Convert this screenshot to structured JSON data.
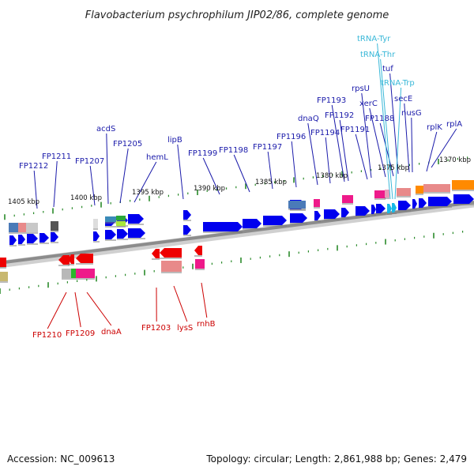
{
  "title": "Flavobacterium psychrophilum JIP02/86, complete genome",
  "footer": {
    "accession": "Accession: NC_009613",
    "summary": "Topology: circular; Length: 2,861,988 bp; Genes: 2,479"
  },
  "scale_labels": [
    "1405 kbp",
    "1400 kbp",
    "1395 kbp",
    "1390 kbp",
    "1385 kbp",
    "1380 kbp",
    "1375 kbp",
    "1370 kbp"
  ],
  "colors": {
    "forward_label": "#1a1aaa",
    "reverse_label": "#cc0000",
    "trna_label": "#3ab8d8",
    "forward_gene": "#0000ee",
    "reverse_gene": "#ee0000",
    "tick": "#2a8a2a",
    "backbone": "#9a9a9a"
  },
  "forward_genes": [
    "FP1212",
    "FP1211",
    "FP1207",
    "acdS",
    "FP1205",
    "hemL",
    "lipB",
    "FP1199",
    "FP1198",
    "FP1197",
    "FP1196",
    "dnaQ",
    "FP1194",
    "FP1193",
    "FP1192",
    "FP1191",
    "rpsU",
    "xerC",
    "FP1188",
    "tuf",
    "secE",
    "nusG",
    "rplK",
    "rplA"
  ],
  "trna_genes": [
    "tRNA-Tyr",
    "tRNA-Thr",
    "tRNA-Trp"
  ],
  "reverse_genes": [
    "FP1210",
    "FP1209",
    "dnaA",
    "FP1203",
    "lysS",
    "rnhB"
  ]
}
